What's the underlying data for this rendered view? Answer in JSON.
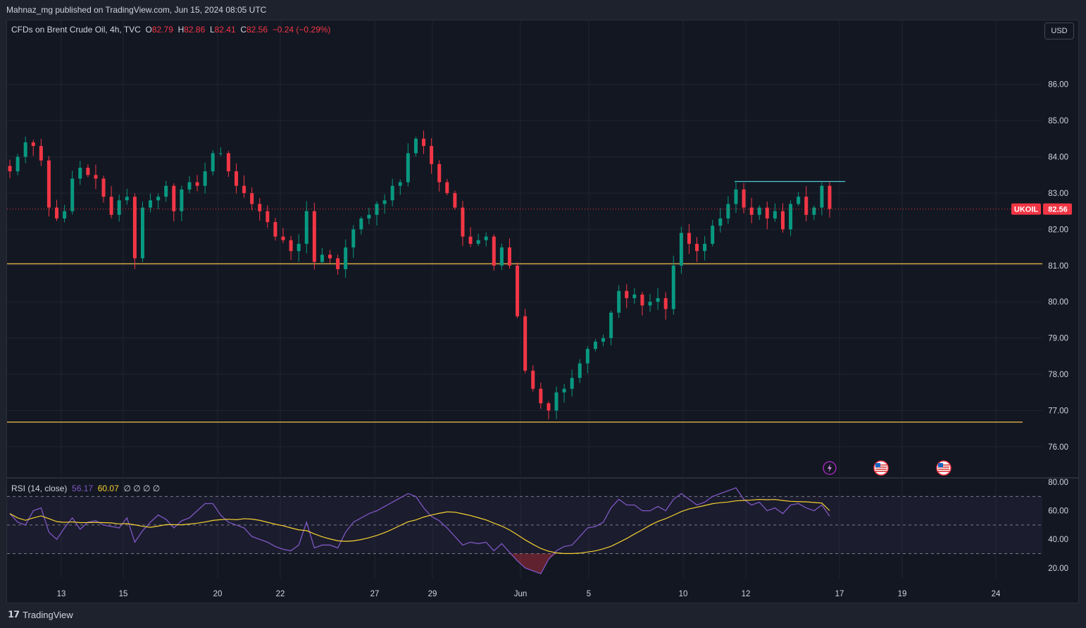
{
  "header": {
    "publish_text": "Mahnaz_mg published on TradingView.com, Jun 15, 2024 08:05 UTC"
  },
  "legend": {
    "symbol": "CFDs on Brent Crude Oil, 4h, TVC",
    "o_label": "O",
    "o_value": "82.79",
    "h_label": "H",
    "h_value": "82.86",
    "l_label": "L",
    "l_value": "82.41",
    "c_label": "C",
    "c_value": "82.56",
    "change": "−0.24 (−0.29%)"
  },
  "rsi_legend": {
    "name": "RSI (14, close)",
    "rsi_value": "56.17",
    "ma_value": "60.07",
    "extra": "∅ ∅ ∅ ∅"
  },
  "currency_button": "USD",
  "price_badge": {
    "symbol": "UKOIL",
    "price": "82.56"
  },
  "footer": {
    "brand": "TradingView"
  },
  "colors": {
    "up": "#089981",
    "down": "#f23645",
    "support": "#f5c14b",
    "resistance": "#4ec9d1",
    "rsi_line": "#7e57c2",
    "rsi_ma": "#f5d131"
  },
  "icons": [
    "lightning-icon",
    "us-flag-icon",
    "us-flag-icon"
  ],
  "chart_data": [
    {
      "type": "candlestick",
      "title": "CFDs on Brent Crude Oil, 4h, TVC",
      "ylim": [
        75.2,
        87.2
      ],
      "yticks": [
        "76.00",
        "77.00",
        "78.00",
        "79.00",
        "80.00",
        "81.00",
        "82.00",
        "83.00",
        "84.00",
        "85.00",
        "86.00"
      ],
      "xticks": [
        "13",
        "15",
        "20",
        "22",
        "27",
        "29",
        "Jun",
        "5",
        "10",
        "12",
        "17",
        "19",
        "24"
      ],
      "close_path": [
        83.6,
        84.0,
        84.4,
        84.3,
        83.9,
        82.6,
        82.3,
        82.5,
        83.4,
        83.7,
        83.5,
        83.4,
        82.9,
        82.4,
        82.8,
        82.9,
        81.2,
        82.6,
        82.8,
        82.9,
        83.2,
        82.5,
        83.1,
        83.3,
        83.2,
        83.6,
        84.1,
        84.1,
        83.6,
        83.2,
        83.0,
        82.7,
        82.5,
        82.2,
        81.8,
        81.7,
        81.4,
        81.6,
        82.5,
        81.1,
        81.3,
        81.2,
        80.9,
        81.5,
        82.0,
        82.3,
        82.4,
        82.7,
        82.8,
        83.2,
        83.3,
        84.1,
        84.5,
        84.3,
        83.8,
        83.3,
        83.0,
        82.6,
        81.8,
        81.6,
        81.7,
        81.8,
        81.0,
        81.5,
        81.0,
        79.6,
        78.1,
        77.6,
        77.2,
        77.0,
        77.5,
        77.6,
        77.9,
        78.3,
        78.7,
        78.9,
        79.0,
        79.7,
        80.3,
        80.1,
        80.2,
        79.9,
        80.0,
        80.1,
        79.8,
        81.0,
        81.9,
        81.6,
        81.4,
        81.6,
        82.1,
        82.3,
        82.7,
        83.1,
        82.6,
        82.4,
        82.6,
        82.3,
        82.5,
        82.0,
        82.7,
        82.9,
        82.4,
        82.6,
        83.2,
        82.56
      ],
      "support_levels": [
        81.05,
        76.68
      ],
      "resistance_level": 83.32,
      "last_price": 82.56
    },
    {
      "type": "line",
      "title": "RSI (14, close)",
      "ylim": [
        13,
        82
      ],
      "yticks": [
        "20.00",
        "40.00",
        "60.00",
        "80.00"
      ],
      "bands": [
        70,
        50,
        30
      ],
      "rsi_path": [
        58,
        52,
        50,
        60,
        62,
        45,
        40,
        48,
        55,
        47,
        52,
        53,
        50,
        49,
        48,
        55,
        38,
        46,
        52,
        57,
        54,
        48,
        53,
        55,
        60,
        65,
        65,
        57,
        52,
        50,
        48,
        42,
        40,
        38,
        35,
        33,
        32,
        36,
        52,
        34,
        36,
        36,
        34,
        45,
        52,
        55,
        58,
        60,
        63,
        66,
        69,
        72,
        70,
        62,
        56,
        53,
        48,
        42,
        36,
        38,
        37,
        38,
        32,
        37,
        31,
        25,
        20,
        18,
        16,
        26,
        32,
        35,
        36,
        42,
        48,
        49,
        52,
        62,
        68,
        64,
        64,
        60,
        60,
        63,
        60,
        68,
        72,
        68,
        64,
        66,
        70,
        72,
        74,
        76,
        68,
        64,
        66,
        60,
        62,
        58,
        64,
        65,
        62,
        60,
        64,
        56.17
      ],
      "ma_last": 60.07
    }
  ]
}
